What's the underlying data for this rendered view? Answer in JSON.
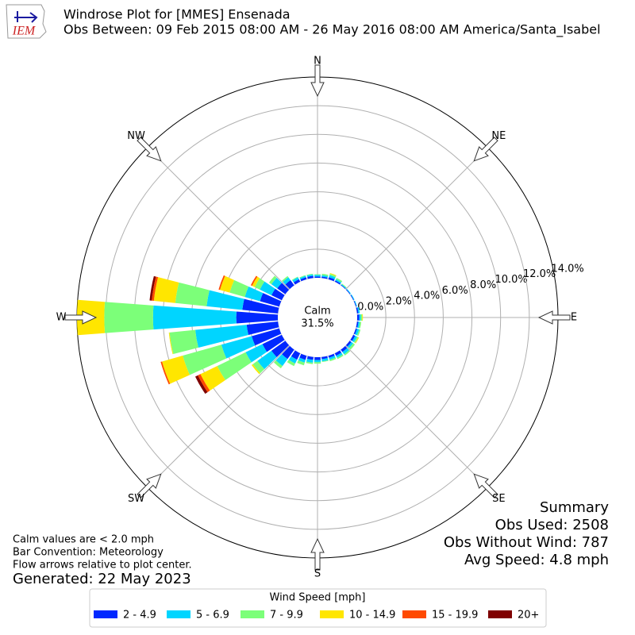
{
  "chart_data": {
    "type": "windrose",
    "logo": "IEM",
    "title": "Windrose Plot for [MMES] Ensenada",
    "subtitle": "Obs Between: 09 Feb 2015 08:00 AM - 26 May 2016 08:00 AM America/Santa_Isabel",
    "compass": [
      "N",
      "NE",
      "E",
      "SE",
      "S",
      "SW",
      "W",
      "NW"
    ],
    "categories": [
      null,
      null,
      null,
      null,
      null,
      null,
      null,
      null,
      null,
      null,
      null,
      null,
      null,
      null,
      null,
      null,
      null,
      null,
      null,
      null,
      null,
      null,
      null,
      null,
      null,
      null,
      null,
      null,
      null,
      null,
      null,
      null,
      null,
      null,
      null,
      null
    ],
    "rlim": [
      0,
      14
    ],
    "rticks": [
      {
        "value": 0,
        "label": "0.0%"
      },
      {
        "value": 2,
        "label": "2.0%"
      },
      {
        "value": 4,
        "label": "4.0%"
      },
      {
        "value": 6,
        "label": "6.0%"
      },
      {
        "value": 8,
        "label": "8.0%"
      },
      {
        "value": 10,
        "label": "10.0%"
      },
      {
        "value": 12,
        "label": "12.0%"
      },
      {
        "value": 14,
        "label": "14.0%"
      }
    ],
    "grid": true,
    "calm": {
      "label": "Calm",
      "value": 31.5,
      "value_label": "31.5%"
    },
    "legend_title": "Wind Speed [mph]",
    "series": [
      {
        "name": "2 - 4.9",
        "color": "#0028ff",
        "values": [
          0.1,
          0.1,
          0.15,
          0.1,
          0.05,
          0.05,
          0.05,
          0.05,
          0.1,
          0.15,
          0.1,
          0.1,
          0.15,
          0.15,
          0.2,
          0.2,
          0.15,
          0.15,
          0.2,
          0.2,
          0.3,
          0.5,
          0.8,
          1.2,
          1.5,
          2.0,
          2.2,
          2.9,
          2.5,
          1.4,
          0.8,
          0.7,
          0.45,
          0.2,
          0.15,
          0.15
        ]
      },
      {
        "name": "5 - 6.9",
        "color": "#00d5ff",
        "values": [
          0.1,
          0.1,
          0.15,
          0.1,
          0.05,
          0.05,
          0.05,
          0.05,
          0.1,
          0.1,
          0.1,
          0.15,
          0.15,
          0.15,
          0.2,
          0.15,
          0.15,
          0.15,
          0.15,
          0.2,
          0.2,
          0.3,
          0.6,
          1.2,
          1.3,
          2.2,
          3.6,
          5.8,
          2.5,
          1.1,
          0.9,
          0.5,
          0.25,
          0.15,
          0.1,
          0.1
        ]
      },
      {
        "name": "7 - 9.9",
        "color": "#7cff79",
        "values": [
          0.05,
          0.1,
          0.1,
          0.1,
          0.05,
          0,
          0,
          0,
          0,
          0.1,
          0.1,
          0.1,
          0.1,
          0.15,
          0.1,
          0.1,
          0.1,
          0.05,
          0.1,
          0.1,
          0.2,
          0.2,
          0.2,
          0.4,
          2.2,
          2.8,
          1.8,
          3.4,
          2.2,
          1.1,
          0.4,
          0.2,
          0.1,
          0.05,
          0.05,
          0.05
        ]
      },
      {
        "name": "10 - 14.9",
        "color": "#ffe600",
        "values": [
          0,
          0,
          0.05,
          0,
          0,
          0,
          0,
          0,
          0,
          0.05,
          0,
          0,
          0.05,
          0,
          0,
          0,
          0,
          0,
          0,
          0,
          0,
          0,
          0,
          0.1,
          1.3,
          1.5,
          0.05,
          1.9,
          1.5,
          0.7,
          0.2,
          0,
          0,
          0,
          0,
          0
        ]
      },
      {
        "name": "15 - 19.9",
        "color": "#ff4a00",
        "values": [
          0,
          0,
          0,
          0,
          0,
          0,
          0,
          0,
          0,
          0,
          0,
          0,
          0,
          0,
          0,
          0,
          0,
          0,
          0,
          0,
          0,
          0,
          0,
          0,
          0.2,
          0.1,
          0,
          0,
          0.15,
          0.1,
          0.1,
          0,
          0,
          0,
          0,
          0
        ]
      },
      {
        "name": "20+",
        "color": "#7f0000",
        "values": [
          0,
          0,
          0,
          0,
          0,
          0,
          0,
          0,
          0,
          0,
          0,
          0,
          0,
          0,
          0,
          0,
          0,
          0,
          0,
          0,
          0,
          0,
          0,
          0,
          0.2,
          0,
          0,
          0,
          0.15,
          0,
          0,
          0,
          0,
          0,
          0,
          0
        ]
      }
    ],
    "summary": [
      "Summary",
      "Obs Used: 2508",
      "Obs Without Wind: 787",
      "Avg Speed: 4.8 mph"
    ],
    "notes": [
      "Calm values are < 2.0 mph",
      "Bar Convention: Meteorology",
      "Flow arrows relative to plot center."
    ],
    "generated": "Generated: 22 May 2023"
  }
}
